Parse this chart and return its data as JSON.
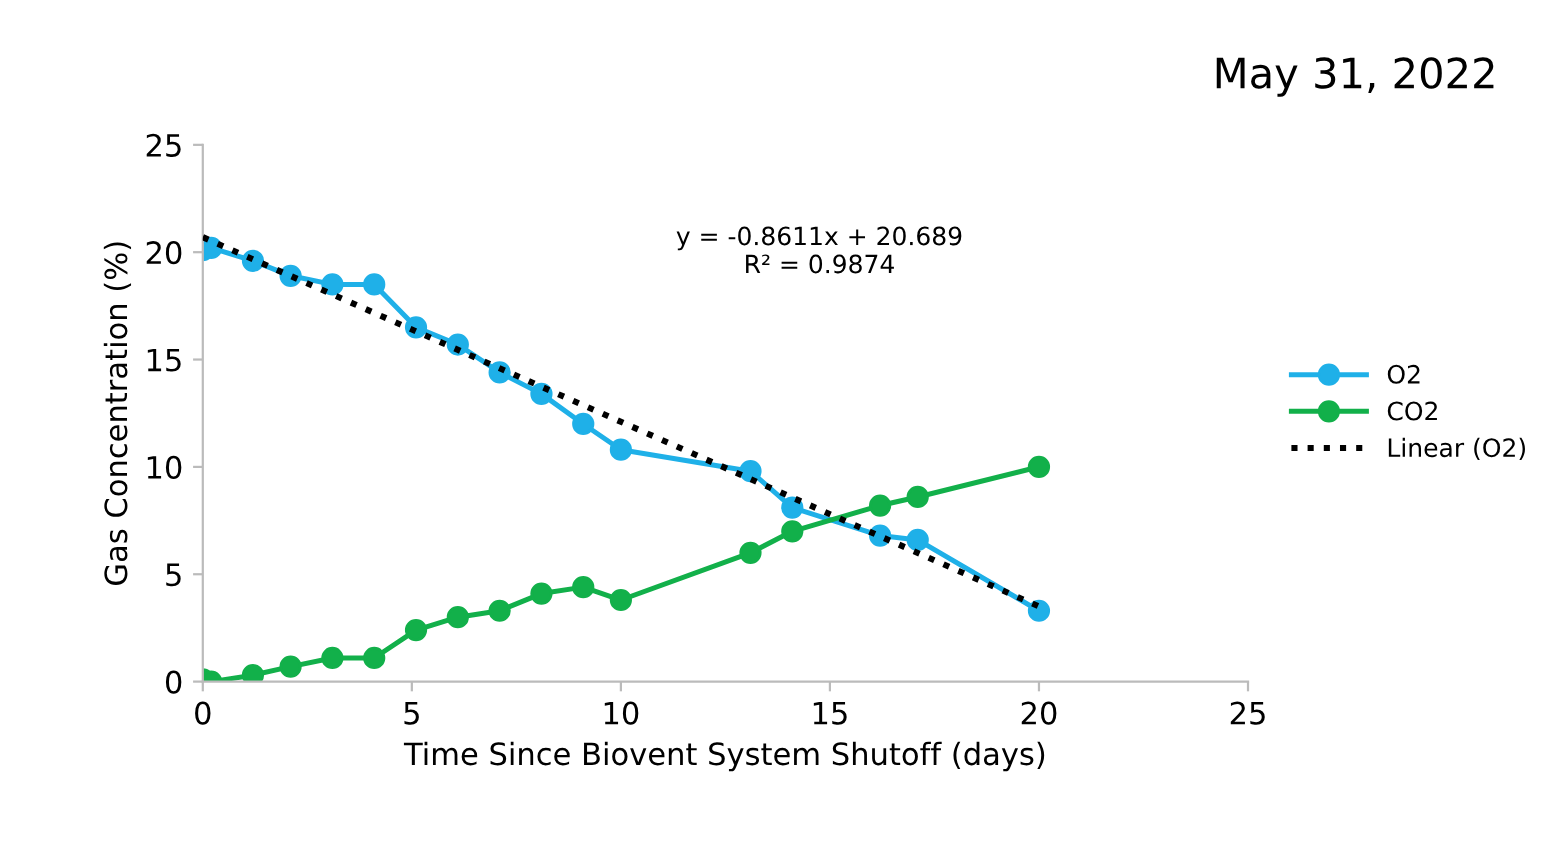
{
  "chart_data": {
    "type": "line",
    "title": "May 31, 2022",
    "xlabel": "Time Since Biovent System Shutoff (days)",
    "ylabel": "Gas Concentration (%)",
    "xlim": [
      0,
      25
    ],
    "xticks": [
      0,
      5,
      10,
      15,
      20,
      25
    ],
    "ylim": [
      0,
      25
    ],
    "yticks": [
      0,
      5,
      10,
      15,
      20,
      25
    ],
    "grid": false,
    "legend": "right",
    "marker": "circle",
    "annotations": [
      "y = -0.8611x + 20.689\nR² = 0.9874"
    ],
    "series": [
      {
        "name": "O2",
        "color": "#1fb0e8",
        "x": [
          0,
          0.2,
          1.2,
          2.1,
          3.1,
          4.1,
          5.1,
          6.1,
          7.1,
          8.1,
          9.1,
          10,
          13.1,
          14.1,
          16.2,
          17.1,
          20
        ],
        "values": [
          20.1,
          20.2,
          19.6,
          18.9,
          18.5,
          18.5,
          16.5,
          15.7,
          14.4,
          13.4,
          12.0,
          10.8,
          9.8,
          8.1,
          6.8,
          6.6,
          3.3
        ]
      },
      {
        "name": "CO2",
        "color": "#12b04a",
        "x": [
          0,
          0.2,
          1.2,
          2.1,
          3.1,
          4.1,
          5.1,
          6.1,
          7.1,
          8.1,
          9.1,
          10,
          13.1,
          14.1,
          16.2,
          17.1,
          20
        ],
        "values": [
          0.1,
          0.0,
          0.3,
          0.7,
          1.1,
          1.1,
          2.4,
          3.0,
          3.3,
          4.1,
          4.4,
          3.8,
          6.0,
          7.0,
          8.2,
          8.6,
          10.0
        ]
      },
      {
        "name": "Linear (O2)",
        "color": "#000000",
        "type": "line",
        "marker": "none",
        "line_style": "dotted",
        "x": [
          0,
          20
        ],
        "values": [
          20.7,
          3.5
        ]
      }
    ]
  }
}
